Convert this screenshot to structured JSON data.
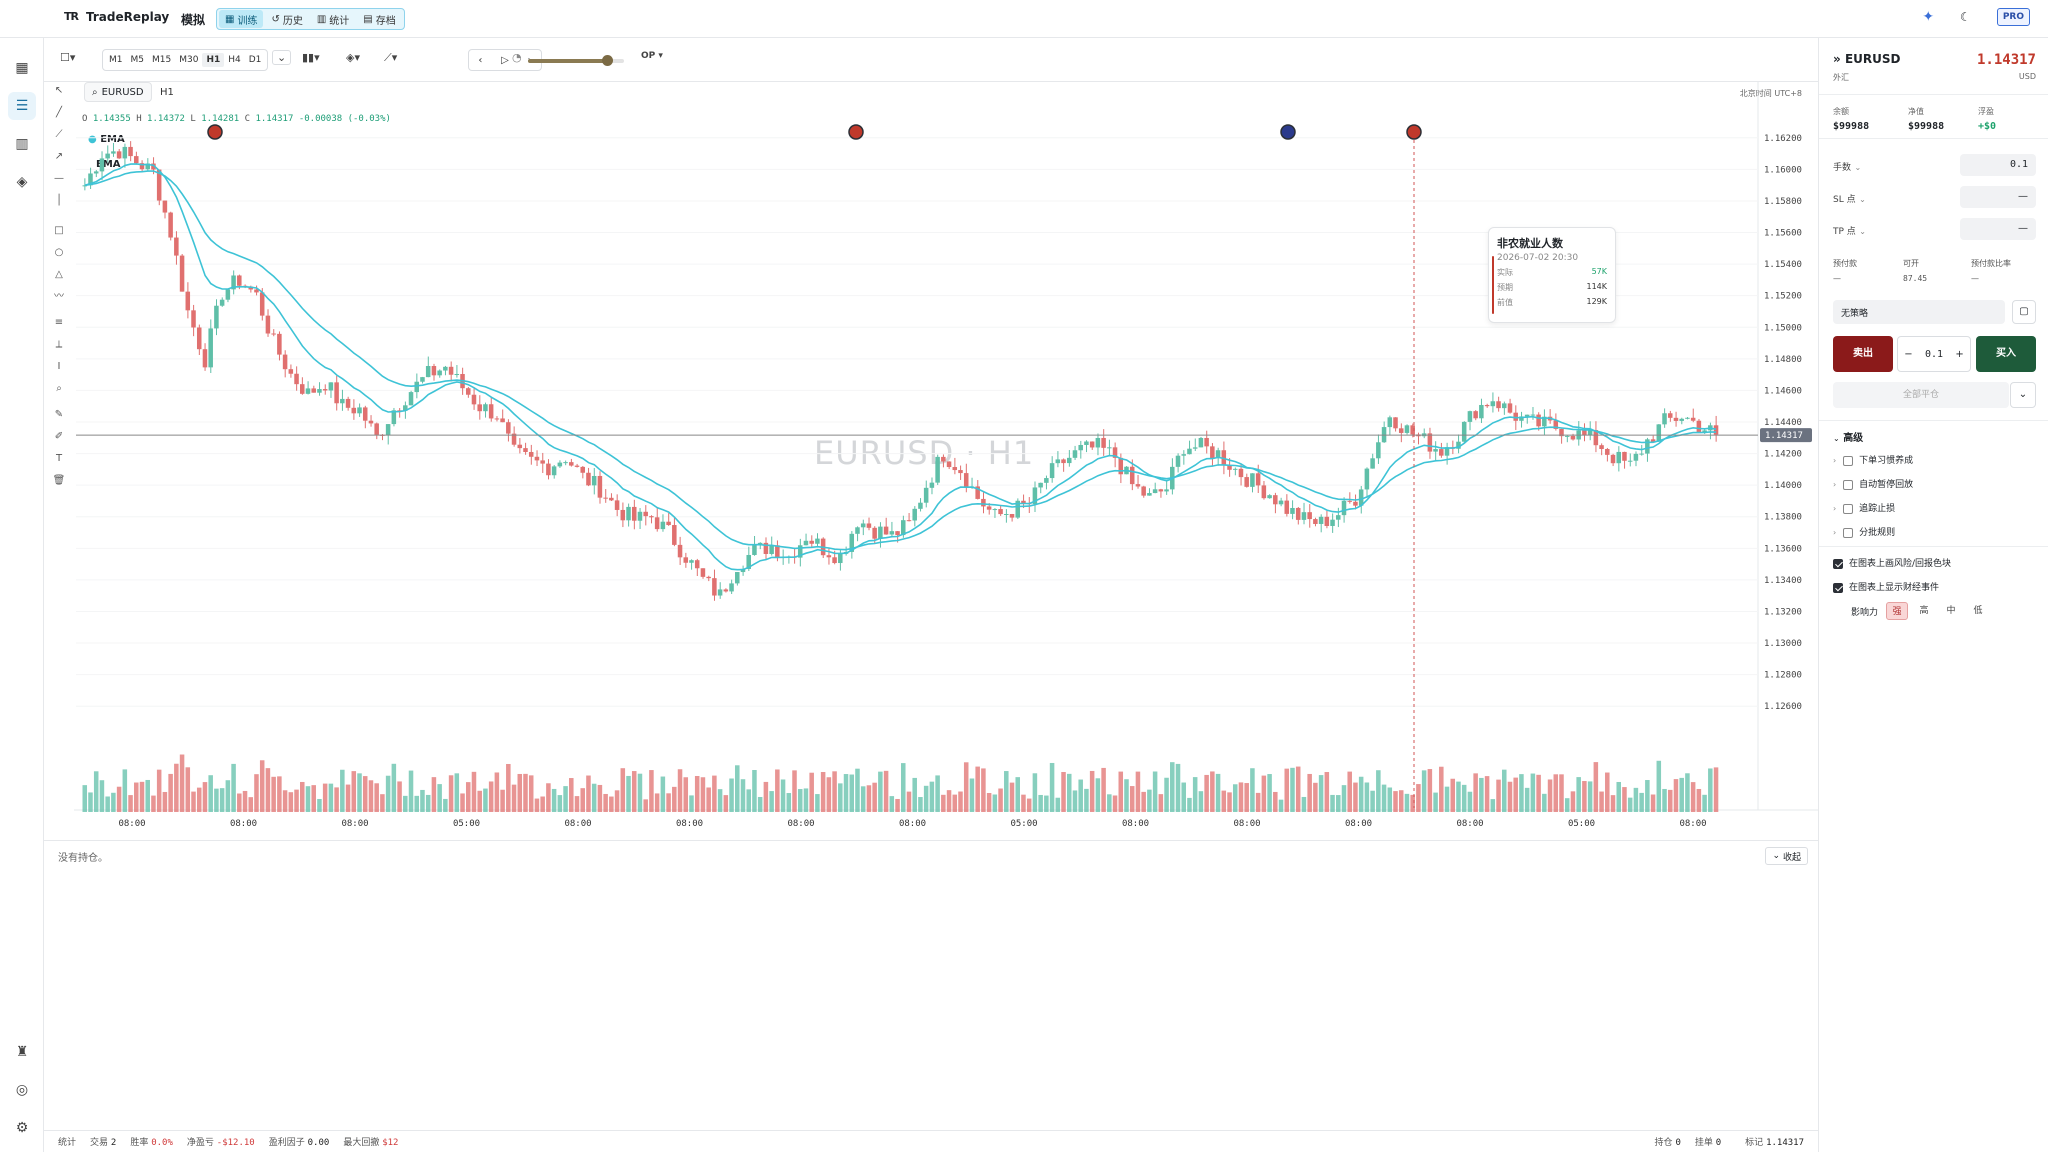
{
  "app": {
    "name": "TradeReplay",
    "logo_text": "TR",
    "mode": "模拟",
    "nav_tabs": [
      {
        "label": "训练",
        "icon": "grid-icon",
        "active": true
      },
      {
        "label": "历史",
        "icon": "history-icon",
        "active": false
      },
      {
        "label": "统计",
        "icon": "chart-icon",
        "active": false
      },
      {
        "label": "存档",
        "icon": "archive-icon",
        "active": false
      }
    ],
    "pro_badge": "PRO"
  },
  "toolbar": {
    "timeframes": [
      "M1",
      "M5",
      "M15",
      "M30",
      "H1",
      "H4",
      "D1"
    ],
    "active_timeframe": "H1",
    "replay_speed_fraction": 0.82,
    "op_label": "OP"
  },
  "chart": {
    "symbol": "EURUSD",
    "timeframe": "H1",
    "timezone": "北京时间 UTC+8",
    "ohlc": {
      "o_label": "O",
      "o": "1.14355",
      "h_label": "H",
      "h": "1.14372",
      "l_label": "L",
      "l": "1.14281",
      "c_label": "C",
      "c": "1.14317",
      "change": "-0.00038 (-0.03%)"
    },
    "legend": [
      "EMA",
      "EMA"
    ],
    "watermark": "EURUSD · H1",
    "last_price": "1.14317",
    "event_tooltip": {
      "title": "非农就业人数",
      "datetime": "2026-07-02 20:30",
      "rows": [
        {
          "label": "实际",
          "value": "57K"
        },
        {
          "label": "预期",
          "value": "114K"
        },
        {
          "label": "前值",
          "value": "129K"
        }
      ]
    }
  },
  "chart_data": {
    "type": "candlestick",
    "y_axis_ticks": [
      "1.16200",
      "1.16000",
      "1.15800",
      "1.15600",
      "1.15400",
      "1.15200",
      "1.15000",
      "1.14800",
      "1.14600",
      "1.14400",
      "1.14200",
      "1.14000",
      "1.13800",
      "1.13600",
      "1.13400",
      "1.13200",
      "1.13000",
      "1.12800",
      "1.12600"
    ],
    "ylim": [
      1.125,
      1.163
    ],
    "x_axis_ticks": [
      "08:00",
      "08:00",
      "08:00",
      "05:00",
      "08:00",
      "08:00",
      "08:00",
      "08:00",
      "05:00",
      "08:00",
      "08:00",
      "08:00",
      "08:00",
      "05:00",
      "08:00"
    ],
    "close_path": [
      1.159,
      1.161,
      1.1612,
      1.1605,
      1.1598,
      1.156,
      1.151,
      1.148,
      1.1522,
      1.153,
      1.152,
      1.149,
      1.147,
      1.1458,
      1.1465,
      1.145,
      1.1448,
      1.143,
      1.1448,
      1.146,
      1.147,
      1.1475,
      1.1462,
      1.145,
      1.1445,
      1.142,
      1.1415,
      1.1412,
      1.1418,
      1.1405,
      1.1398,
      1.1385,
      1.1378,
      1.138,
      1.137,
      1.1355,
      1.134,
      1.133,
      1.135,
      1.1358,
      1.1362,
      1.1355,
      1.1368,
      1.136,
      1.1355,
      1.1378,
      1.1372,
      1.1368,
      1.1375,
      1.14,
      1.142,
      1.141,
      1.1392,
      1.138,
      1.1384,
      1.1388,
      1.1405,
      1.1415,
      1.1422,
      1.1424,
      1.1418,
      1.14,
      1.1392,
      1.1398,
      1.1425,
      1.1424,
      1.142,
      1.141,
      1.1402,
      1.1395,
      1.1385,
      1.1378,
      1.1376,
      1.1382,
      1.1392,
      1.142,
      1.1445,
      1.1435,
      1.1428,
      1.1422,
      1.1432,
      1.1448,
      1.1455,
      1.1446,
      1.144,
      1.1438,
      1.1436,
      1.1432,
      1.1428,
      1.1418,
      1.1412,
      1.1428,
      1.144,
      1.1444,
      1.1438,
      1.1432
    ],
    "events": [
      {
        "label": "econ-event-1"
      },
      {
        "label": "econ-event-2"
      },
      {
        "label": "econ-event-3"
      },
      {
        "label": "econ-event-4"
      }
    ],
    "series": [
      {
        "name": "EMA"
      },
      {
        "name": "EMA"
      }
    ],
    "grid": true
  },
  "positions": {
    "empty_text": "没有持仓。",
    "collapse_label": "收起"
  },
  "status": {
    "title": "统计",
    "trades_label": "交易",
    "trades": "2",
    "winrate_label": "胜率",
    "winrate": "0.0%",
    "pnl_label": "净盈亏",
    "pnl": "-$12.10",
    "pf_label": "盈利因子",
    "pf": "0.00",
    "dd_label": "最大回撤",
    "dd": "$12",
    "hold_label": "持仓",
    "hold": "0",
    "pending_label": "挂单",
    "pending": "0",
    "mark_label": "标记",
    "mark": "1.14317"
  },
  "panel": {
    "symbol": "EURUSD",
    "category": "外汇",
    "price": "1.14317",
    "currency": "USD",
    "balance_label": "余额",
    "balance": "$99988",
    "equity_label": "净值",
    "equity": "$99988",
    "float_label": "浮盈",
    "float": "+$0",
    "lots_label": "手数",
    "lots": "0.1",
    "sl_label": "SL 点",
    "sl": "—",
    "tp_label": "TP 点",
    "tp": "—",
    "margin_label": "预付款",
    "margin": "—",
    "avail_label": "可开",
    "avail": "87.45",
    "ratio_label": "预付款比率",
    "ratio": "—",
    "strategy": "无策略",
    "sell_label": "卖出",
    "buy_label": "买入",
    "qty": "0.1",
    "closeall_label": "全部平仓",
    "advanced_label": "高级",
    "advanced_items": [
      "下单习惯养成",
      "自动暂停回放",
      "追踪止损",
      "分批规则"
    ],
    "opt_risk": "在图表上画风险/回报色块",
    "opt_events": "在图表上显示财经事件",
    "impact_label": "影响力",
    "impact_levels": [
      "强",
      "高",
      "中",
      "低"
    ]
  },
  "colors": {
    "up": "#5fbfa8",
    "down": "#e0706f",
    "ema": "#3ec3d6",
    "accent": "#1a6fa0",
    "sell": "#8b1a1a",
    "buy": "#1e5b3a"
  }
}
